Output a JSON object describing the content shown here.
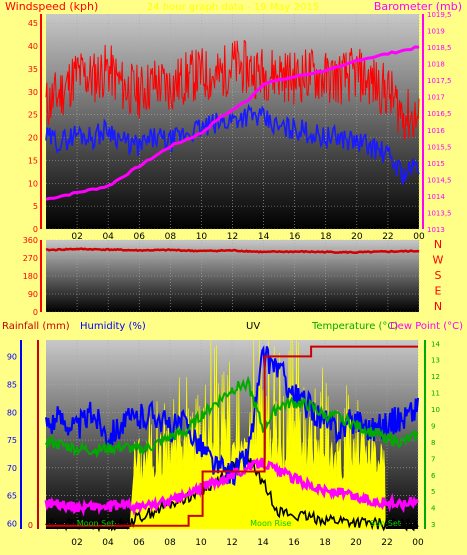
{
  "header": {
    "title": "24 hour graph data - 19 May 2015",
    "windspeed_label": "Windspeed (kph)",
    "barometer_label": "Barometer (mb)"
  },
  "colors": {
    "background": "#ffff88",
    "plot_bg_top": "#c8c8c8",
    "plot_bg_bottom": "#000000",
    "gust": "#ff0000",
    "wind": "#1a1aff",
    "barometer": "#ff00ff",
    "direction": "#d40000",
    "rainfall": "#cc0000",
    "humidity": "#0000ff",
    "uv": "#ffff00",
    "temperature": "#00aa00",
    "dewpoint": "#ff00ff",
    "solar": "#000000",
    "left_axis": "#ff0000",
    "right_axis": "#ff00ff",
    "dir_axis": "#ff0000",
    "bottom_left_axis": "#0000ff",
    "bottom_right_axis": "#00aa00"
  },
  "chart_data": [
    {
      "name": "wind-barometer",
      "type": "line",
      "x_ticks": [
        "02",
        "04",
        "06",
        "08",
        "10",
        "12",
        "14",
        "16",
        "18",
        "20",
        "22",
        "00"
      ],
      "left_axis": {
        "label": "Windspeed (kph)",
        "ticks": [
          "0",
          "5",
          "10",
          "15",
          "20",
          "25",
          "30",
          "35",
          "40",
          "45"
        ],
        "range": [
          0,
          47
        ]
      },
      "right_axis": {
        "label": "Barometer (mb)",
        "ticks": [
          "1013",
          "1013,5",
          "1014",
          "1014,5",
          "1015",
          "1015,5",
          "1016",
          "1016,5",
          "1017",
          "1017,5",
          "1018",
          "1018,5",
          "1019",
          "1019,5"
        ],
        "range": [
          1013,
          1019.5
        ]
      },
      "series": [
        {
          "key": "gust",
          "hours": [
            0,
            1,
            2,
            3,
            4,
            5,
            6,
            7,
            8,
            9,
            10,
            11,
            12,
            13,
            14,
            15,
            16,
            17,
            18,
            19,
            20,
            21,
            22,
            23,
            24
          ],
          "values": [
            27,
            30,
            34,
            33,
            35,
            31,
            30,
            32,
            31,
            33,
            34,
            33,
            36,
            35,
            34,
            34,
            33,
            34,
            33,
            33,
            34,
            32,
            30,
            25,
            24
          ]
        },
        {
          "key": "wind",
          "hours": [
            0,
            1,
            2,
            3,
            4,
            5,
            6,
            7,
            8,
            9,
            10,
            11,
            12,
            13,
            14,
            15,
            16,
            17,
            18,
            19,
            20,
            21,
            22,
            23,
            24
          ],
          "values": [
            20,
            19,
            21,
            20,
            22,
            19,
            18,
            20,
            19,
            21,
            22,
            23,
            24,
            25,
            24,
            22,
            22,
            21,
            20,
            20,
            19,
            18,
            16,
            12,
            14
          ]
        },
        {
          "key": "barometer",
          "hours": [
            0,
            1,
            2,
            3,
            4,
            5,
            6,
            7,
            8,
            9,
            10,
            11,
            12,
            13,
            14,
            15,
            16,
            17,
            18,
            19,
            20,
            21,
            22,
            23,
            24
          ],
          "values": [
            1013.9,
            1014.0,
            1014.1,
            1014.2,
            1014.3,
            1014.6,
            1014.9,
            1015.2,
            1015.5,
            1015.7,
            1015.9,
            1016.3,
            1016.6,
            1016.9,
            1017.4,
            1017.5,
            1017.6,
            1017.7,
            1017.8,
            1017.9,
            1018.1,
            1018.2,
            1018.3,
            1018.4,
            1018.5
          ]
        }
      ]
    },
    {
      "name": "wind-direction",
      "type": "line",
      "left_ticks": [
        "0",
        "90",
        "180",
        "270",
        "360"
      ],
      "left_tick_values": [
        0,
        90,
        180,
        270,
        360
      ],
      "compass": [
        "N",
        "W",
        "S",
        "E",
        "N"
      ],
      "range": [
        0,
        360
      ],
      "series": [
        {
          "key": "direction",
          "hours": [
            0,
            2,
            4,
            6,
            8,
            10,
            12,
            14,
            16,
            18,
            20,
            22,
            24
          ],
          "values": [
            310,
            315,
            312,
            308,
            310,
            305,
            308,
            300,
            302,
            300,
            298,
            302,
            305
          ]
        }
      ]
    },
    {
      "name": "rain-humidity-uv-temperature",
      "type": "line",
      "labels": {
        "rainfall": "Rainfall (mm)",
        "humidity": "Humidity (%)",
        "uv": "UV",
        "temperature": "Temperature (°C)",
        "dewpoint": "Dew Point (°C)"
      },
      "rain_ticks": [
        "0"
      ],
      "humidity_ticks": [
        "60",
        "65",
        "70",
        "75",
        "80",
        "85",
        "90"
      ],
      "humidity_range": [
        59,
        93
      ],
      "temp_ticks": [
        "3",
        "4",
        "5",
        "6",
        "7",
        "8",
        "9",
        "10",
        "11",
        "12",
        "13",
        "14"
      ],
      "temp_range": [
        2.7,
        14.2
      ],
      "x_ticks": [
        "02",
        "04",
        "06",
        "08",
        "10",
        "12",
        "14",
        "16",
        "18",
        "20",
        "22",
        "00"
      ],
      "annotations": [
        {
          "text": "Moon Set",
          "hour": 3.2
        },
        {
          "text": "Moon Rise",
          "hour": 14.5
        },
        {
          "text": "Sun Set",
          "hour": 21.9
        }
      ],
      "series": [
        {
          "key": "humidity",
          "hours": [
            0,
            1,
            2,
            3,
            4,
            5,
            6,
            7,
            8,
            9,
            10,
            11,
            12,
            13,
            14,
            15,
            16,
            17,
            18,
            19,
            20,
            21,
            22,
            23,
            24
          ],
          "values": [
            78,
            79,
            77,
            80,
            76,
            78,
            79,
            80,
            77,
            78,
            74,
            70,
            69,
            72,
            90,
            88,
            83,
            81,
            78,
            77,
            79,
            77,
            78,
            79,
            81
          ]
        },
        {
          "key": "temperature",
          "hours": [
            0,
            1,
            2,
            3,
            4,
            5,
            6,
            7,
            8,
            9,
            10,
            11,
            12,
            13,
            14,
            15,
            16,
            17,
            18,
            19,
            20,
            21,
            22,
            23,
            24
          ],
          "values": [
            8.1,
            7.8,
            7.6,
            7.5,
            7.6,
            7.7,
            7.5,
            7.8,
            8.3,
            8.6,
            9.6,
            10.4,
            11.2,
            11.6,
            8.8,
            10.2,
            10.4,
            10.2,
            9.6,
            9.5,
            9.0,
            8.6,
            8.2,
            8.0,
            8.4
          ]
        },
        {
          "key": "dewpoint",
          "hours": [
            0,
            1,
            2,
            3,
            4,
            5,
            6,
            7,
            8,
            9,
            10,
            11,
            12,
            13,
            14,
            15,
            16,
            17,
            18,
            19,
            20,
            21,
            22,
            23,
            24
          ],
          "values": [
            4.3,
            4.2,
            4.0,
            4.1,
            4.0,
            4.2,
            4.0,
            4.2,
            4.4,
            4.7,
            5.2,
            5.6,
            6.0,
            6.4,
            6.8,
            6.2,
            5.8,
            5.4,
            5.0,
            4.9,
            4.6,
            4.4,
            4.3,
            4.2,
            4.5
          ]
        },
        {
          "key": "solar",
          "hours": [
            0,
            5,
            6,
            7,
            8,
            9,
            10,
            11,
            12,
            13,
            14,
            15,
            16,
            17,
            18,
            19,
            20,
            21,
            22,
            23,
            24
          ],
          "values": [
            3,
            3,
            3.4,
            3.8,
            4.2,
            4.6,
            5.0,
            5.6,
            6.5,
            7.1,
            5.5,
            3.8,
            3.5,
            3.4,
            3.3,
            3.2,
            3.1,
            3.0,
            3.0,
            3.0,
            3.0
          ]
        },
        {
          "key": "rain_step",
          "hours": [
            0,
            5.7,
            8.5,
            9.2,
            10.1,
            11.1,
            13.9,
            14.1,
            17.1,
            24
          ],
          "temp_scale_values": [
            2.9,
            2.9,
            2.9,
            3.5,
            6.2,
            6.2,
            6.2,
            13.2,
            13.8,
            13.8
          ]
        }
      ]
    }
  ]
}
